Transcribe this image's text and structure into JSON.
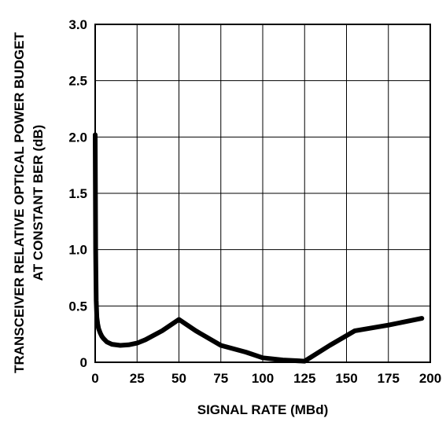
{
  "chart_data": {
    "type": "line",
    "title": "",
    "xlabel": "SIGNAL RATE (MBd)",
    "ylabel_line1": "TRANSCEIVER RELATIVE OPTICAL POWER BUDGET",
    "ylabel_line2": "AT CONSTANT BER (dB)",
    "xlim": [
      0,
      200
    ],
    "ylim": [
      0,
      3.0
    ],
    "x_ticks": [
      0,
      25,
      50,
      75,
      100,
      125,
      150,
      175,
      200
    ],
    "x_tick_labels": [
      "0",
      "25",
      "50",
      "75",
      "100",
      "125",
      "150",
      "175",
      "200"
    ],
    "y_ticks": [
      0,
      0.5,
      1.0,
      1.5,
      2.0,
      2.5,
      3.0
    ],
    "y_tick_labels": [
      "0",
      "0.5",
      "1.0",
      "1.5",
      "2.0",
      "2.5",
      "3.0"
    ],
    "grid": true,
    "series": [
      {
        "x": [
          0,
          0.3,
          0.6,
          1,
          1.5,
          2,
          3,
          4,
          5,
          7,
          10,
          15,
          20,
          25,
          30,
          40,
          50,
          60,
          75,
          90,
          100,
          112,
          125,
          140,
          155,
          175,
          195
        ],
        "y": [
          2.02,
          1.0,
          0.55,
          0.4,
          0.34,
          0.3,
          0.26,
          0.23,
          0.21,
          0.18,
          0.16,
          0.15,
          0.155,
          0.17,
          0.2,
          0.28,
          0.38,
          0.28,
          0.15,
          0.09,
          0.04,
          0.02,
          0.01,
          0.15,
          0.28,
          0.33,
          0.39
        ]
      }
    ]
  }
}
